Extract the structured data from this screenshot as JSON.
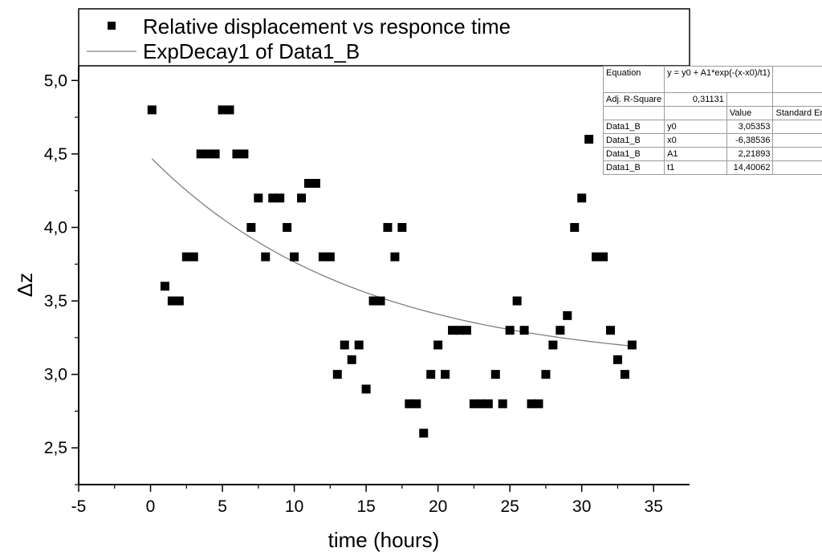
{
  "chart_data": {
    "type": "scatter",
    "xlabel": "time (hours)",
    "ylabel": "Δz",
    "xlim": [
      -5,
      37.5
    ],
    "ylim": [
      2.25,
      5.1
    ],
    "xticks": [
      -5,
      0,
      5,
      10,
      15,
      20,
      25,
      30,
      35
    ],
    "xtick_labels": [
      "-5",
      "0",
      "5",
      "10",
      "15",
      "20",
      "25",
      "30",
      "35"
    ],
    "yticks": [
      2.5,
      3.0,
      3.5,
      4.0,
      4.5,
      5.0
    ],
    "ytick_labels": [
      "2,5",
      "3,0",
      "3,5",
      "4,0",
      "4,5",
      "5,0"
    ],
    "grid": false,
    "legend_position": "top",
    "legend": [
      {
        "label": "Relative displacement vs responce time",
        "marker": "square"
      },
      {
        "label": "ExpDecay1 of Data1_B",
        "marker": "line"
      }
    ],
    "series": [
      {
        "name": "Relative displacement vs responce time",
        "marker": "square",
        "color": "#000000",
        "points": [
          [
            0.1,
            4.8
          ],
          [
            1.0,
            3.6
          ],
          [
            1.5,
            3.5
          ],
          [
            2.0,
            3.5
          ],
          [
            2.5,
            3.8
          ],
          [
            3.0,
            3.8
          ],
          [
            3.5,
            4.5
          ],
          [
            4.0,
            4.5
          ],
          [
            4.5,
            4.5
          ],
          [
            5.0,
            4.8
          ],
          [
            5.5,
            4.8
          ],
          [
            6.0,
            4.5
          ],
          [
            6.5,
            4.5
          ],
          [
            7.0,
            4.0
          ],
          [
            7.5,
            4.2
          ],
          [
            8.0,
            3.8
          ],
          [
            8.5,
            4.2
          ],
          [
            9.0,
            4.2
          ],
          [
            9.5,
            4.0
          ],
          [
            10.0,
            3.8
          ],
          [
            10.5,
            4.2
          ],
          [
            11.0,
            4.3
          ],
          [
            11.5,
            4.3
          ],
          [
            12.0,
            3.8
          ],
          [
            12.5,
            3.8
          ],
          [
            13.0,
            3.0
          ],
          [
            13.5,
            3.2
          ],
          [
            14.0,
            3.1
          ],
          [
            14.5,
            3.2
          ],
          [
            15.0,
            2.9
          ],
          [
            15.5,
            3.5
          ],
          [
            16.0,
            3.5
          ],
          [
            16.5,
            4.0
          ],
          [
            17.0,
            3.8
          ],
          [
            17.5,
            4.0
          ],
          [
            18.0,
            2.8
          ],
          [
            18.5,
            2.8
          ],
          [
            19.0,
            2.6
          ],
          [
            19.5,
            3.0
          ],
          [
            20.0,
            3.2
          ],
          [
            20.5,
            3.0
          ],
          [
            21.0,
            3.3
          ],
          [
            21.5,
            3.3
          ],
          [
            22.0,
            3.3
          ],
          [
            22.5,
            2.8
          ],
          [
            23.0,
            2.8
          ],
          [
            23.5,
            2.8
          ],
          [
            24.0,
            3.0
          ],
          [
            24.5,
            2.8
          ],
          [
            25.0,
            3.3
          ],
          [
            25.5,
            3.5
          ],
          [
            26.0,
            3.3
          ],
          [
            26.5,
            2.8
          ],
          [
            27.0,
            2.8
          ],
          [
            27.5,
            3.0
          ],
          [
            28.0,
            3.2
          ],
          [
            28.5,
            3.3
          ],
          [
            29.0,
            3.4
          ],
          [
            29.5,
            4.0
          ],
          [
            30.0,
            4.2
          ],
          [
            30.5,
            4.6
          ],
          [
            31.0,
            3.8
          ],
          [
            31.5,
            3.8
          ],
          [
            32.0,
            3.3
          ],
          [
            32.5,
            3.1
          ],
          [
            33.0,
            3.0
          ],
          [
            33.5,
            3.2
          ]
        ]
      },
      {
        "name": "ExpDecay1 of Data1_B",
        "type": "line",
        "color": "#808080",
        "equation": "y = y0 + A1*exp(-(x-x0)/t1)",
        "params": {
          "y0": 3.05353,
          "x0": -6.38536,
          "A1": 2.21893,
          "t1": 14.40062
        },
        "x_range": [
          0.1,
          33.5
        ]
      }
    ],
    "fit_table": {
      "header": [
        "Equation",
        "y = y0 + A1*exp(-(x-x0)/t1)"
      ],
      "r_square_label": "Adj. R-Square",
      "r_square_value": "0,31131",
      "col_value": "Value",
      "col_std": "Standard Error",
      "rows": [
        {
          "dataset": "Data1_B",
          "param": "y0",
          "value": "3,05353"
        },
        {
          "dataset": "Data1_B",
          "param": "x0",
          "value": "-6,38536"
        },
        {
          "dataset": "Data1_B",
          "param": "A1",
          "value": "2,21893"
        },
        {
          "dataset": "Data1_B",
          "param": "t1",
          "value": "14,40062"
        }
      ]
    }
  }
}
